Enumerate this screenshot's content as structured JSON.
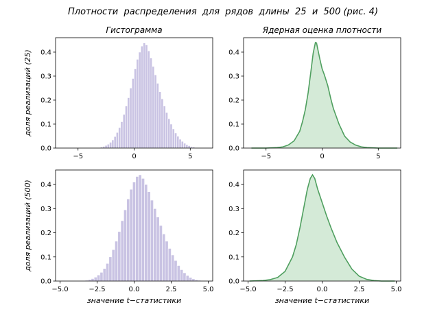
{
  "figure": {
    "title": "Плотности  распределения  для  рядов  длины  25  и  500 (рис. 4)"
  },
  "colors": {
    "hist_fill": "#c9c3e3",
    "hist_edge": "#ffffff",
    "kde_line": "#4f9f5f",
    "kde_fill": "#d4ead7",
    "axis": "#000000"
  },
  "chart_data": [
    {
      "type": "bar",
      "title": "Гистограмма",
      "xlabel": "",
      "ylabel": "доля  реализаций  (25)",
      "xlim": [
        -7,
        7
      ],
      "ylim": [
        0,
        0.46
      ],
      "xticks": [
        -5,
        0,
        5
      ],
      "xtick_labels": [
        "−5",
        "0",
        "5"
      ],
      "yticks": [
        0.0,
        0.1,
        0.2,
        0.3,
        0.4
      ],
      "ytick_labels": [
        "0.0",
        "0.1",
        "0.2",
        "0.3",
        "0.4"
      ],
      "bin_width": 0.2,
      "bin_start": -3.0,
      "values": [
        0.004,
        0.007,
        0.011,
        0.016,
        0.024,
        0.034,
        0.048,
        0.065,
        0.085,
        0.11,
        0.14,
        0.175,
        0.21,
        0.25,
        0.29,
        0.33,
        0.37,
        0.4,
        0.425,
        0.438,
        0.43,
        0.405,
        0.375,
        0.34,
        0.305,
        0.27,
        0.235,
        0.205,
        0.175,
        0.148,
        0.122,
        0.1,
        0.08,
        0.063,
        0.049,
        0.037,
        0.028,
        0.02,
        0.014,
        0.01,
        0.006,
        0.004
      ]
    },
    {
      "type": "area",
      "title": "Ядерная  оценка  плотности",
      "xlabel": "",
      "ylabel": "",
      "xlim": [
        -7,
        7
      ],
      "ylim": [
        0,
        0.46
      ],
      "xticks": [
        -5,
        0,
        5
      ],
      "xtick_labels": [
        "−5",
        "0",
        "5"
      ],
      "yticks": [
        0.0,
        0.1,
        0.2,
        0.3,
        0.4
      ],
      "ytick_labels": [
        "0.0",
        "0.1",
        "0.2",
        "0.3",
        "0.4"
      ],
      "x": [
        -6.3,
        -5,
        -4,
        -3.5,
        -3,
        -2.5,
        -2,
        -1.75,
        -1.5,
        -1.25,
        -1,
        -0.8,
        -0.6,
        -0.5,
        -0.4,
        -0.2,
        0,
        0.2,
        0.5,
        0.8,
        1,
        1.5,
        2,
        2.5,
        3,
        3.5,
        4,
        5,
        6.7
      ],
      "y": [
        0.0,
        0.0,
        0.002,
        0.005,
        0.013,
        0.03,
        0.07,
        0.11,
        0.16,
        0.23,
        0.32,
        0.395,
        0.44,
        0.438,
        0.415,
        0.37,
        0.33,
        0.305,
        0.26,
        0.2,
        0.165,
        0.1,
        0.05,
        0.025,
        0.012,
        0.005,
        0.002,
        0.0,
        0.0
      ]
    },
    {
      "type": "bar",
      "title": "",
      "xlabel": "значение  t−статистики",
      "ylabel": "доля  реализаций  (500)",
      "xlim": [
        -5.3,
        5.3
      ],
      "ylim": [
        0,
        0.46
      ],
      "xticks": [
        -5.0,
        -2.5,
        0.0,
        2.5,
        5.0
      ],
      "xtick_labels": [
        "−5.0",
        "−2.5",
        "0.0",
        "2.5",
        "5.0"
      ],
      "yticks": [
        0.0,
        0.1,
        0.2,
        0.3,
        0.4
      ],
      "ytick_labels": [
        "0.0",
        "0.1",
        "0.2",
        "0.3",
        "0.4"
      ],
      "bin_width": 0.2,
      "bin_start": -3.3,
      "values": [
        0.003,
        0.006,
        0.01,
        0.016,
        0.025,
        0.036,
        0.052,
        0.073,
        0.1,
        0.13,
        0.165,
        0.205,
        0.25,
        0.295,
        0.34,
        0.38,
        0.41,
        0.433,
        0.44,
        0.425,
        0.4,
        0.37,
        0.335,
        0.3,
        0.265,
        0.23,
        0.195,
        0.165,
        0.135,
        0.108,
        0.085,
        0.064,
        0.047,
        0.034,
        0.023,
        0.015,
        0.009,
        0.005,
        0.003
      ]
    },
    {
      "type": "area",
      "title": "",
      "xlabel": "значение  t−статистики",
      "ylabel": "",
      "xlim": [
        -5.3,
        5.3
      ],
      "ylim": [
        0,
        0.46
      ],
      "xticks": [
        -5.0,
        -2.5,
        0.0,
        2.5,
        5.0
      ],
      "xtick_labels": [
        "−5.0",
        "−2.5",
        "0.0",
        "2.5",
        "5.0"
      ],
      "yticks": [
        0.0,
        0.1,
        0.2,
        0.3,
        0.4
      ],
      "ytick_labels": [
        "0.0",
        "0.1",
        "0.2",
        "0.3",
        "0.4"
      ],
      "x": [
        -4.9,
        -4,
        -3.5,
        -3,
        -2.5,
        -2,
        -1.75,
        -1.5,
        -1.25,
        -1,
        -0.8,
        -0.65,
        -0.5,
        -0.3,
        0,
        0.3,
        0.6,
        1,
        1.5,
        2,
        2.5,
        3,
        3.5,
        4,
        4.9
      ],
      "y": [
        0.0,
        0.002,
        0.006,
        0.015,
        0.04,
        0.1,
        0.15,
        0.22,
        0.3,
        0.38,
        0.425,
        0.44,
        0.425,
        0.38,
        0.325,
        0.27,
        0.22,
        0.16,
        0.1,
        0.05,
        0.02,
        0.007,
        0.002,
        0.0,
        0.0
      ]
    }
  ]
}
